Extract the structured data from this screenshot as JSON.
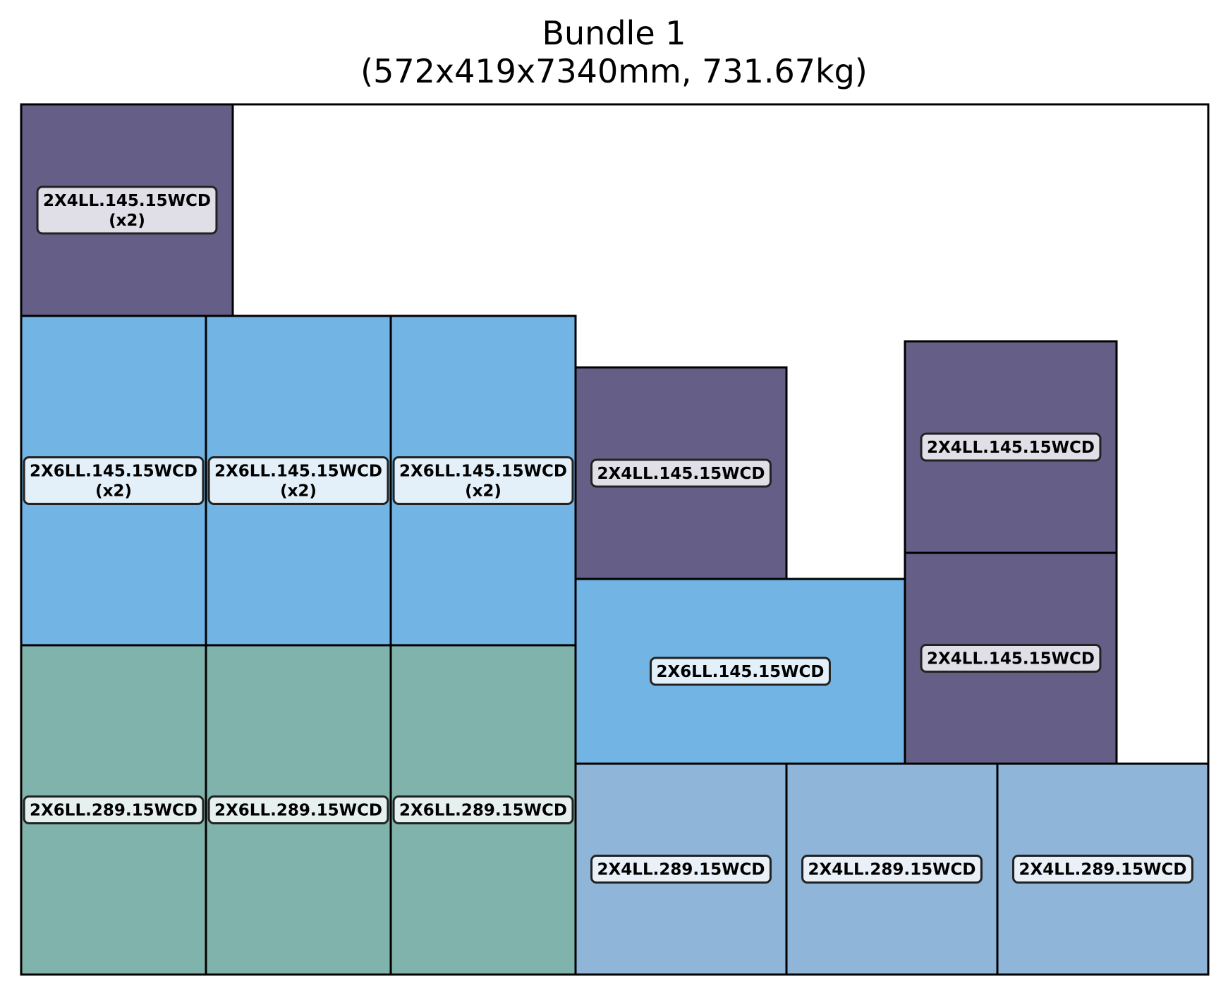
{
  "title": {
    "line1": "Bundle 1",
    "line2": "(572x419x7340mm, 731.67kg)"
  },
  "colors": {
    "2X4LL.145.15WCD": "#655f87",
    "2X6LL.145.15WCD": "#72b4e3",
    "2X6LL.289.15WCD": "#80b3ab",
    "2X4LL.289.15WCD": "#8fb5d8",
    "label_box": "#ffffff",
    "outline": "#000000"
  },
  "pieces": [
    {
      "name": "2X4LL.145.15WCD",
      "label": "2X4LL.145.15WCD",
      "count": "(x2)"
    },
    {
      "name": "2X6LL.145.15WCD",
      "label": "2X6LL.145.15WCD",
      "count": "(x2)"
    },
    {
      "name": "2X6LL.145.15WCD",
      "label": "2X6LL.145.15WCD",
      "count": "(x2)"
    },
    {
      "name": "2X6LL.145.15WCD",
      "label": "2X6LL.145.15WCD",
      "count": "(x2)"
    },
    {
      "name": "2X4LL.145.15WCD",
      "label": "2X4LL.145.15WCD",
      "count": ""
    },
    {
      "name": "2X4LL.145.15WCD",
      "label": "2X4LL.145.15WCD",
      "count": ""
    },
    {
      "name": "2X4LL.145.15WCD",
      "label": "2X4LL.145.15WCD",
      "count": ""
    },
    {
      "name": "2X6LL.145.15WCD",
      "label": "2X6LL.145.15WCD",
      "count": ""
    },
    {
      "name": "2X6LL.289.15WCD",
      "label": "2X6LL.289.15WCD",
      "count": ""
    },
    {
      "name": "2X6LL.289.15WCD",
      "label": "2X6LL.289.15WCD",
      "count": ""
    },
    {
      "name": "2X6LL.289.15WCD",
      "label": "2X6LL.289.15WCD",
      "count": ""
    },
    {
      "name": "2X4LL.289.15WCD",
      "label": "2X4LL.289.15WCD",
      "count": ""
    },
    {
      "name": "2X4LL.289.15WCD",
      "label": "2X4LL.289.15WCD",
      "count": ""
    },
    {
      "name": "2X4LL.289.15WCD",
      "label": "2X4LL.289.15WCD",
      "count": ""
    }
  ]
}
